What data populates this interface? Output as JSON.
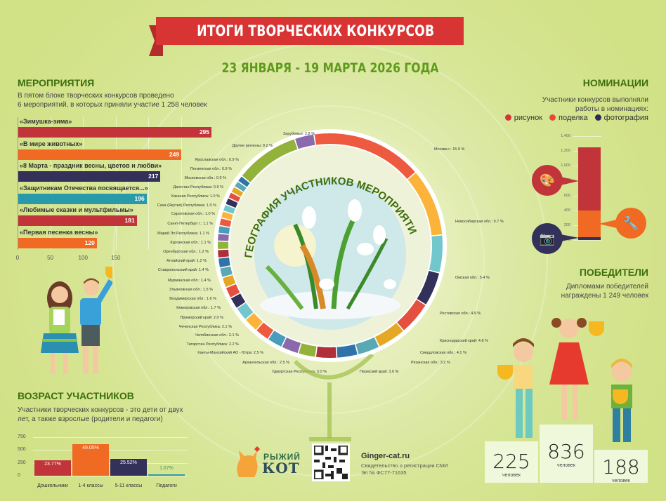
{
  "header": {
    "title": "ИТОГИ ТВОРЧЕСКИХ КОНКУРСОВ",
    "subtitle": "23 ЯНВАРЯ - 19 МАРТА 2026 ГОДА"
  },
  "events": {
    "heading": "МЕРОПРИЯТИЯ",
    "text_line1": "В пятом блоке творческих конкурсов проведено",
    "text_line2": "6 мероприятий, в которых приняли участие 1 258 человек",
    "ticks": [
      "0",
      "50",
      "100",
      "150"
    ]
  },
  "age": {
    "heading": "ВОЗРАСТ УЧАСТНИКОВ",
    "text_line1": "Участники творческих конкурсов - это дети от двух",
    "text_line2": "лет, а также взрослые (родители и педагоги)",
    "yticks": [
      "750",
      "500",
      "250",
      "0"
    ]
  },
  "nominations": {
    "heading": "НОМИНАЦИИ",
    "text_line1": "Участники конкурсов выполняли",
    "text_line2": "работы в номинациях:",
    "legend": [
      {
        "label": "рисунок",
        "color": "#d93434"
      },
      {
        "label": "поделка",
        "color": "#e8483a"
      },
      {
        "label": "фотография",
        "color": "#2e2a4f"
      }
    ],
    "yticks": [
      "1,400",
      "1,200",
      "1,000",
      "800",
      "600",
      "400",
      "200",
      "0"
    ]
  },
  "winners": {
    "heading": "ПОБЕДИТЕЛИ",
    "text_line1": "Дипломами победителей",
    "text_line2": "награждены 1 249 человек",
    "podium": [
      {
        "place": 2,
        "value": "225",
        "caption": "человек"
      },
      {
        "place": 1,
        "value": "836",
        "caption": "человек"
      },
      {
        "place": 3,
        "value": "188",
        "caption": "человек"
      }
    ]
  },
  "geography": {
    "title": "ГЕОГРАФИЯ УЧАСТНИКОВ МЕРОПРИЯТИЙ"
  },
  "footer": {
    "logo_line1": "РЫЖИЙ",
    "logo_line2": "КОТ",
    "site": "Ginger-cat.ru",
    "reg_line1": "Свидетельство о регистрации СМИ",
    "reg_line2": "Эл № ФС77-71635"
  },
  "chart_data": [
    {
      "type": "bar",
      "orientation": "horizontal",
      "title": "МЕРОПРИЯТИЯ",
      "categories": [
        "«Зимушка-зима»",
        "«В мире животных»",
        "«8 Марта - праздник весны, цветов и любви»",
        "«Защитникам Отечества посвящается...»",
        "«Любимые сказки и мультфильмы»",
        "«Первая песенка весны»"
      ],
      "values": [
        295,
        249,
        217,
        196,
        181,
        120
      ],
      "colors": [
        "#c0343a",
        "#f06a24",
        "#33305a",
        "#2a9aaa",
        "#c0343a",
        "#f06a24"
      ],
      "xticks": [
        0,
        50,
        100,
        150
      ],
      "xlim": [
        0,
        300
      ],
      "grid": true
    },
    {
      "type": "bar",
      "title": "ВОЗРАСТ УЧАСТНИКОВ",
      "categories": [
        "Дошкольники",
        "1-4 классы",
        "5-11 классы",
        "Педагоги"
      ],
      "values": [
        299,
        617,
        321,
        21
      ],
      "labels": [
        "23.77%",
        "49.05%",
        "25.52%",
        "1.67%"
      ],
      "colors": [
        "#c0343a",
        "#f06a24",
        "#33305a",
        "#2a9aaa"
      ],
      "yticks": [
        0,
        250,
        500,
        750
      ],
      "ylim": [
        0,
        750
      ],
      "grid": true
    },
    {
      "type": "bar",
      "stacked": true,
      "title": "НОМИНАЦИИ",
      "categories": [
        "Номинации"
      ],
      "series": [
        {
          "name": "фотография",
          "values": [
            40
          ],
          "color": "#33305a"
        },
        {
          "name": "поделка",
          "values": [
            360
          ],
          "color": "#f06a24"
        },
        {
          "name": "рисунок",
          "values": [
            845
          ],
          "color": "#c0343a"
        }
      ],
      "yticks": [
        0,
        200,
        400,
        600,
        800,
        1000,
        1200,
        1400
      ],
      "ylim": [
        0,
        1400
      ]
    },
    {
      "type": "pie",
      "donut": true,
      "title": "ГЕОГРАФИЯ УЧАСТНИКОВ МЕРОПРИЯТИЙ",
      "categories": [
        "Москва г.",
        "Новосибирская обл.",
        "Омская обл.",
        "Ростовская обл.",
        "Краснодарский край",
        "Свердловская обл.",
        "Рязанская обл.",
        "Пермский край",
        "Удмуртская Республика",
        "Архангельская обл.",
        "Ханты-Мансийский АО - Югра",
        "Татарстан Республика",
        "Челябинская обл.",
        "Чеченская Республика",
        "Приморский край",
        "Кемеровская обл.",
        "Владимирская обл.",
        "Ульяновская обл.",
        "Мурманская обл.",
        "Ставропольский край",
        "Алтайский край",
        "Оренбургская обл.",
        "Курганская обл.",
        "Марий Эл Республика",
        "Санкт-Петербург г.",
        "Саратовская обл.",
        "Саха (Якутия) Республика",
        "Хакасия Республика",
        "Дагестан Республика",
        "Московская обл.",
        "Пензенская обл.",
        "Ярославская обл.",
        "Другие регионы",
        "Зарубежье"
      ],
      "values": [
        15.9,
        9.7,
        5.4,
        4.9,
        4.8,
        4.1,
        3.2,
        3.0,
        3.0,
        2.5,
        2.5,
        2.2,
        2.1,
        2.1,
        2.0,
        1.7,
        1.6,
        1.5,
        1.4,
        1.4,
        1.2,
        1.2,
        1.1,
        1.1,
        1.1,
        1.0,
        1.0,
        1.0,
        0.9,
        0.9,
        0.9,
        0.9,
        9.2,
        2.8
      ],
      "colors": [
        "#ee5a40",
        "#fbb33a",
        "#72c7cd",
        "#33305a",
        "#e4503f",
        "#e5a825",
        "#5aa8b4",
        "#2f73a8",
        "#b12f38",
        "#93b23a",
        "#8a6aac",
        "#4a9cbc",
        "#ee5a40",
        "#fbb33a",
        "#72c7cd",
        "#33305a",
        "#e4503f",
        "#e5a825",
        "#5aa8b4",
        "#2f73a8",
        "#b12f38",
        "#93b23a",
        "#8a6aac",
        "#4a9cbc",
        "#ee5a40",
        "#fbb33a",
        "#72c7cd",
        "#33305a",
        "#e4503f",
        "#e5a825",
        "#5aa8b4",
        "#2f73a8",
        "#93b23a",
        "#8a6aac"
      ],
      "unit": "%"
    }
  ]
}
